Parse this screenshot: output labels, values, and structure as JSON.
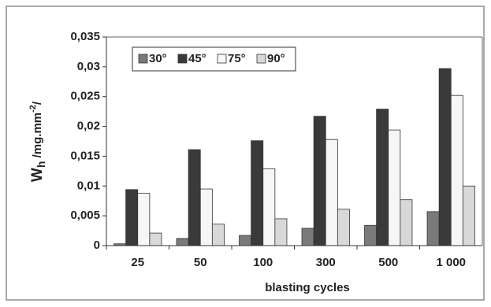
{
  "chart_data": {
    "type": "bar",
    "y_label": {
      "main": "W",
      "sub": "h",
      "unit": " /mg.mm",
      "sup": "-2",
      "end": "/"
    },
    "x_label": "blasting cycles",
    "categories": [
      "25",
      "50",
      "100",
      "300",
      "500",
      "1 000"
    ],
    "series": [
      {
        "name": "30°",
        "color": "#7a7a7a",
        "values": [
          0.0003,
          0.0012,
          0.0017,
          0.0029,
          0.0034,
          0.0057
        ]
      },
      {
        "name": "45°",
        "color": "#3a3a3a",
        "values": [
          0.0094,
          0.0161,
          0.0176,
          0.0217,
          0.0229,
          0.0297
        ]
      },
      {
        "name": "75°",
        "color": "#f6f6f6",
        "values": [
          0.0088,
          0.0095,
          0.0129,
          0.0178,
          0.0194,
          0.0252
        ]
      },
      {
        "name": "90°",
        "color": "#d8d8d8",
        "values": [
          0.0021,
          0.0036,
          0.0045,
          0.0061,
          0.0077,
          0.01
        ]
      }
    ],
    "ylim": [
      0,
      0.035
    ],
    "yticks": [
      0,
      {
        "value": 0.005,
        "label": "0,005"
      },
      {
        "value": 0.01,
        "label": "0,01"
      },
      {
        "value": 0.015,
        "label": "0,015"
      },
      {
        "value": 0.02,
        "label": "0,02"
      },
      {
        "value": 0.025,
        "label": "0,025"
      },
      {
        "value": 0.03,
        "label": "0,03"
      },
      {
        "value": 0.035,
        "label": "0,035"
      }
    ],
    "legend": "top-left"
  }
}
